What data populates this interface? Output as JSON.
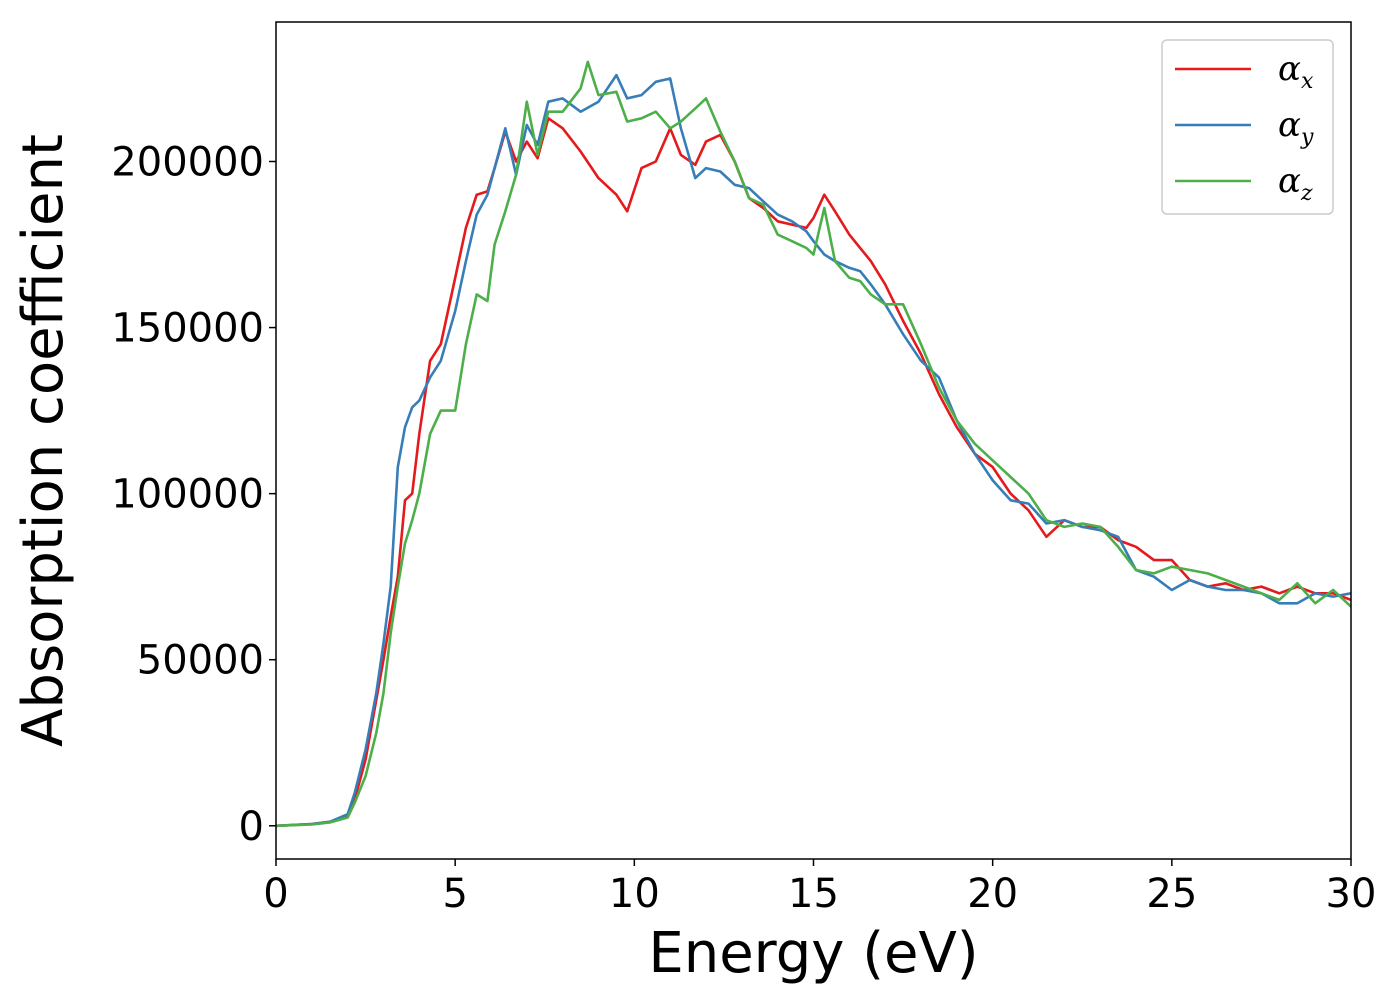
{
  "chart_data": {
    "type": "line",
    "title": "",
    "xlabel": "Energy (eV)",
    "ylabel": "Absorption coefficient",
    "xlim": [
      0,
      30
    ],
    "ylim": [
      -10000,
      242000
    ],
    "xticks": [
      0,
      5,
      10,
      15,
      20,
      25,
      30
    ],
    "xtick_labels": [
      "0",
      "5",
      "10",
      "15",
      "20",
      "25",
      "30"
    ],
    "yticks": [
      0,
      50000,
      100000,
      150000,
      200000
    ],
    "ytick_labels": [
      "0",
      "50000",
      "100000",
      "150000",
      "200000"
    ],
    "grid": false,
    "legend_position": "top-right",
    "series": [
      {
        "name": "α",
        "subscript": "x",
        "color": "#e41a1c",
        "x": [
          0,
          1,
          1.5,
          2,
          2.2,
          2.5,
          2.8,
          3.0,
          3.2,
          3.4,
          3.6,
          3.8,
          4.0,
          4.3,
          4.6,
          5.0,
          5.3,
          5.6,
          5.9,
          6.1,
          6.4,
          6.7,
          7.0,
          7.3,
          7.6,
          8.0,
          8.5,
          9.0,
          9.5,
          9.8,
          10.2,
          10.6,
          11.0,
          11.3,
          11.7,
          12.0,
          12.4,
          12.8,
          13.2,
          13.6,
          14.0,
          14.4,
          14.8,
          15.0,
          15.3,
          15.6,
          16.0,
          16.3,
          16.6,
          17.0,
          17.5,
          18.0,
          18.5,
          19.0,
          19.5,
          20.0,
          20.5,
          21.0,
          21.5,
          22.0,
          22.5,
          23.0,
          23.5,
          24.0,
          24.5,
          25.0,
          25.5,
          26.0,
          26.5,
          27.0,
          27.5,
          28.0,
          28.5,
          29.0,
          29.5,
          30.0
        ],
        "y": [
          0,
          500,
          1200,
          3000,
          8000,
          20000,
          38000,
          50000,
          63000,
          75000,
          98000,
          100000,
          118000,
          140000,
          145000,
          165000,
          180000,
          190000,
          191000,
          198000,
          209000,
          200000,
          206000,
          201000,
          213000,
          210000,
          203000,
          195000,
          190000,
          185000,
          198000,
          200000,
          210000,
          202000,
          199000,
          206000,
          208000,
          200000,
          189000,
          186000,
          182000,
          181000,
          180000,
          183000,
          190000,
          185000,
          178000,
          174000,
          170000,
          163000,
          152000,
          142000,
          130000,
          120000,
          112000,
          108000,
          100000,
          95000,
          87000,
          92000,
          90000,
          90000,
          86000,
          84000,
          80000,
          80000,
          74000,
          72000,
          73000,
          71000,
          72000,
          70000,
          72000,
          70000,
          70000,
          68000
        ]
      },
      {
        "name": "α",
        "subscript": "y",
        "color": "#377eb8",
        "x": [
          0,
          1,
          1.5,
          2,
          2.2,
          2.5,
          2.8,
          3.0,
          3.2,
          3.4,
          3.6,
          3.8,
          4.0,
          4.3,
          4.6,
          5.0,
          5.3,
          5.6,
          5.9,
          6.1,
          6.4,
          6.7,
          7.0,
          7.3,
          7.6,
          8.0,
          8.5,
          9.0,
          9.5,
          9.8,
          10.2,
          10.6,
          11.0,
          11.3,
          11.7,
          12.0,
          12.4,
          12.8,
          13.2,
          13.6,
          14.0,
          14.4,
          14.8,
          15.0,
          15.3,
          15.6,
          16.0,
          16.3,
          16.6,
          17.0,
          17.5,
          18.0,
          18.5,
          19.0,
          19.5,
          20.0,
          20.5,
          21.0,
          21.5,
          22.0,
          22.5,
          23.0,
          23.5,
          24.0,
          24.5,
          25.0,
          25.5,
          26.0,
          26.5,
          27.0,
          27.5,
          28.0,
          28.5,
          29.0,
          29.5,
          30.0
        ],
        "y": [
          0,
          500,
          1200,
          3500,
          10000,
          23000,
          40000,
          55000,
          72000,
          108000,
          120000,
          126000,
          128000,
          135000,
          140000,
          155000,
          170000,
          184000,
          190000,
          198000,
          210000,
          196000,
          211000,
          205000,
          218000,
          219000,
          215000,
          218000,
          226000,
          219000,
          220000,
          224000,
          225000,
          210000,
          195000,
          198000,
          197000,
          193000,
          192000,
          188000,
          184000,
          182000,
          179000,
          176000,
          172000,
          170000,
          168000,
          167000,
          163000,
          157000,
          148000,
          140000,
          135000,
          122000,
          112000,
          104000,
          98000,
          97000,
          91000,
          92000,
          90000,
          89000,
          87000,
          77000,
          75000,
          71000,
          74000,
          72000,
          71000,
          71000,
          70000,
          67000,
          67000,
          70000,
          69000,
          70000
        ]
      },
      {
        "name": "α",
        "subscript": "z",
        "color": "#4daf4a",
        "x": [
          0,
          1,
          1.5,
          2,
          2.2,
          2.5,
          2.8,
          3.0,
          3.2,
          3.4,
          3.6,
          3.8,
          4.0,
          4.3,
          4.6,
          5.0,
          5.3,
          5.6,
          5.9,
          6.1,
          6.4,
          6.7,
          7.0,
          7.3,
          7.6,
          8.0,
          8.5,
          8.7,
          9.0,
          9.5,
          9.8,
          10.2,
          10.6,
          11.0,
          11.3,
          11.7,
          12.0,
          12.4,
          12.8,
          13.2,
          13.6,
          14.0,
          14.4,
          14.8,
          15.0,
          15.3,
          15.6,
          16.0,
          16.3,
          16.6,
          17.0,
          17.5,
          18.0,
          18.5,
          19.0,
          19.5,
          20.0,
          20.5,
          21.0,
          21.5,
          22.0,
          22.5,
          23.0,
          23.5,
          24.0,
          24.5,
          25.0,
          25.5,
          26.0,
          26.5,
          27.0,
          27.5,
          28.0,
          28.5,
          29.0,
          29.5,
          30.0
        ],
        "y": [
          0,
          400,
          1000,
          2500,
          7000,
          15000,
          28000,
          40000,
          58000,
          72000,
          85000,
          92000,
          100000,
          118000,
          125000,
          125000,
          145000,
          160000,
          158000,
          175000,
          185000,
          196000,
          218000,
          202000,
          215000,
          215000,
          222000,
          230000,
          220000,
          221000,
          212000,
          213000,
          215000,
          210000,
          212000,
          216000,
          219000,
          209000,
          200000,
          189000,
          187000,
          178000,
          176000,
          174000,
          172000,
          186000,
          170000,
          165000,
          164000,
          160000,
          157000,
          157000,
          145000,
          132000,
          122000,
          115000,
          110000,
          105000,
          100000,
          92000,
          90000,
          91000,
          90000,
          84000,
          77000,
          76000,
          78000,
          77000,
          76000,
          74000,
          72000,
          70000,
          68000,
          73000,
          67000,
          71000,
          66000
        ]
      }
    ]
  }
}
